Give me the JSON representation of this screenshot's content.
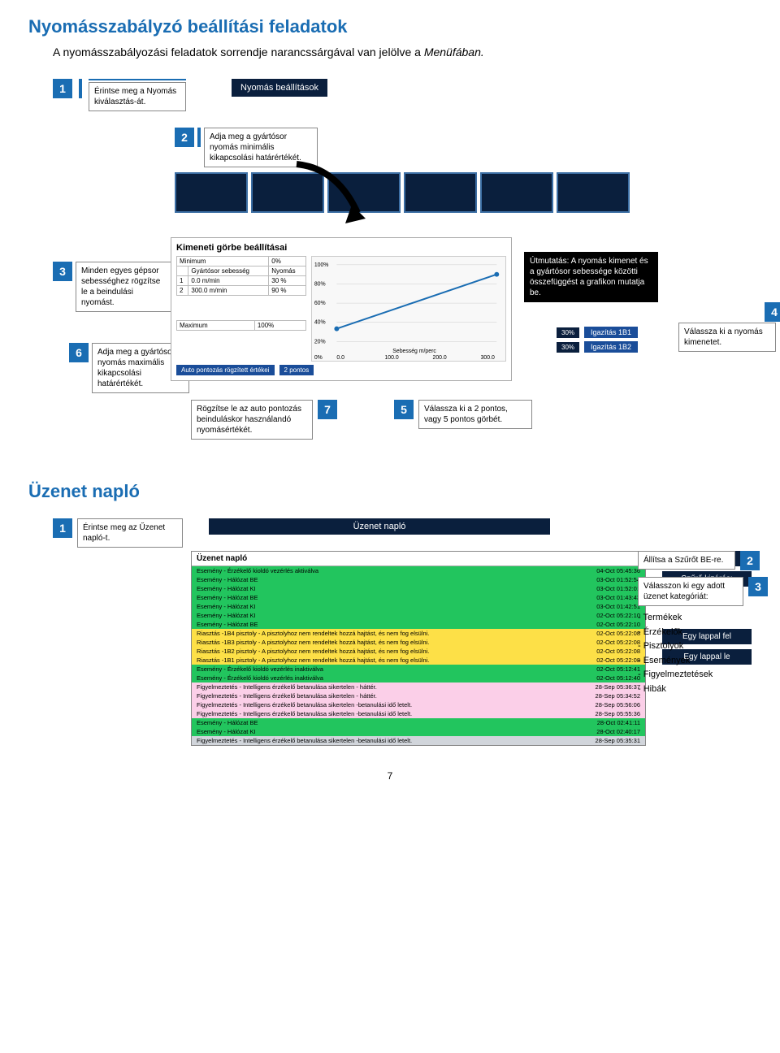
{
  "colors": {
    "accent": "#1a6db3",
    "navy": "#0a1f3d",
    "btn_blue": "#1a4d99",
    "row_green": "#22c55e",
    "row_yellow": "#fde047",
    "row_pink": "#fbcfe8",
    "row_gray": "#d1d5db"
  },
  "section1": {
    "title": "Nyomásszabályzó beállítási feladatok",
    "intro_a": "A nyomásszabályozási feladatok sorrendje narancssárgával van jelölve a ",
    "intro_b": "Menüfában.",
    "step1_num": "1",
    "step1_text": "Érintse meg a Nyomás kiválasztás-át.",
    "btn_nyomas": "Nyomás beállítások",
    "step2_num": "2",
    "step2_text": "Adja meg a gyártósor nyomás minimális kikapcsolási határértékét.",
    "panel_title": "Kimeneti görbe beállításai",
    "tbl_hdr_min": "Minimum",
    "tbl_hdr_minv": "0%",
    "tbl_col1": "Gyártósor sebesség",
    "tbl_col2": "Nyomás",
    "tbl_r1_n": "1",
    "tbl_r1_a": "0.0 m/min",
    "tbl_r1_b": "30 %",
    "tbl_r2_n": "2",
    "tbl_r2_a": "300.0 m/min",
    "tbl_r2_b": "90 %",
    "tbl_max": "Maximum",
    "tbl_maxv": "100%",
    "chart_y": [
      "100%",
      "80%",
      "60%",
      "40%",
      "20%",
      "0%"
    ],
    "chart_x_label": "Sebesség m/perc",
    "chart_x": [
      "0.0",
      "100.0",
      "200.0",
      "300.0"
    ],
    "btn_auto": "Auto pontozás rögzített értékei",
    "btn_2p": "2 pontos",
    "step3_num": "3",
    "step3_text": "Minden egyes gépsor sebességhez rögzítse le a beindulási nyomást.",
    "step6_num": "6",
    "step6_text": "Adja meg a gyártósor nyomás maximális kikapcsolási határértékét.",
    "hint_text": "Útmutatás: A nyomás kimenet és a gyártósor sebessége közötti összefüggést a grafikon mutatja be.",
    "step4_num": "4",
    "out_pct": "30%",
    "out1": "Igazítás 1B1",
    "out2": "Igazítás 1B2",
    "out_text": "Válassza ki a nyomás kimenetet.",
    "step7_num": "7",
    "step7_text": "Rögzítse le az auto pontozás beinduláskor használandó nyomásértékét.",
    "step5_num": "5",
    "step5_text": "Válassza ki a 2 pontos, vagy 5 pontos görbét."
  },
  "section2": {
    "title": "Üzenet napló",
    "step1_num": "1",
    "step1_text": "Érintse meg az Űzenet napló-t.",
    "panel_head": "Üzenet napló",
    "panel_title": "Üzenet napló",
    "rows": [
      {
        "cls": "lr-green",
        "t": "Esemény - Érzékelő kioldó vezérlés aktiválva",
        "d": "04-Oct 05:45:36"
      },
      {
        "cls": "lr-green",
        "t": "Esemény - Hálózat BE",
        "d": "03-Oct 01:52:54"
      },
      {
        "cls": "lr-green",
        "t": "Esemény - Hálózat KI",
        "d": "03-Oct 01:52:01"
      },
      {
        "cls": "lr-green",
        "t": "Esemény - Hálózat BE",
        "d": "03-Oct 01:43:43"
      },
      {
        "cls": "lr-green",
        "t": "Esemény - Hálózat KI",
        "d": "03-Oct 01:42:51"
      },
      {
        "cls": "lr-green",
        "t": "Esemény - Hálózat KI",
        "d": "02-Oct 05:22:10"
      },
      {
        "cls": "lr-green",
        "t": "Esemény - Hálózat BE",
        "d": "02-Oct 05:22:10"
      },
      {
        "cls": "lr-yellow",
        "t": "Riasztás -1B4 pisztoly - A pisztolyhoz nem rendeltek hozzá hajtást, és nem fog elsülni.",
        "d": "02-Oct 05:22:08"
      },
      {
        "cls": "lr-yellow",
        "t": "Riasztás -1B3 pisztoly - A pisztolyhoz nem rendeltek hozzá hajtást, és nem fog elsülni.",
        "d": "02-Oct 05:22:08"
      },
      {
        "cls": "lr-yellow",
        "t": "Riasztás -1B2 pisztoly - A pisztolyhoz nem rendeltek hozzá hajtást, és nem fog elsülni.",
        "d": "02-Oct 05:22:08"
      },
      {
        "cls": "lr-yellow",
        "t": "Riasztás -1B1 pisztoly - A pisztolyhoz nem rendeltek hozzá hajtást, és nem fog elsülni.",
        "d": "02-Oct 05:22:08"
      },
      {
        "cls": "lr-green",
        "t": "Esemény - Érzékelő kioldó vezérlés inaktiválva",
        "d": "02-Oct 05:12:41"
      },
      {
        "cls": "lr-green",
        "t": "Esemény - Érzékelő kioldó vezérlés inaktiválva",
        "d": "02-Oct 05:12:40"
      },
      {
        "cls": "lr-pink",
        "t": "Figyelmeztetés - Intelligens érzékelő betanulása sikertelen - háttér.",
        "d": "28-Sep 05:36:37"
      },
      {
        "cls": "lr-pink",
        "t": "Figyelmeztetés - Intelligens érzékelő betanulása sikertelen - háttér.",
        "d": "28-Sep 05:34:52"
      },
      {
        "cls": "lr-pink",
        "t": "Figyelmeztetés - Intelligens érzékelő betanulása sikertelen -betanulási idő letelt.",
        "d": "28-Sep 05:56:06"
      },
      {
        "cls": "lr-pink",
        "t": "Figyelmeztetés - Intelligens érzékelő betanulása sikertelen -betanulási idő letelt.",
        "d": "28-Sep 05:55:36"
      },
      {
        "cls": "lr-green",
        "t": "Esemény - Hálózat BE",
        "d": "28-Oct 02:41:11"
      },
      {
        "cls": "lr-green",
        "t": "Esemény - Hálózat KI",
        "d": "28-Oct 02:40:17"
      },
      {
        "cls": "lr-gray",
        "t": "Figyelmeztetés - Intelligens érzékelő betanulása sikertelen -betanulási idő letelt.",
        "d": "28-Sep 05:35:31"
      }
    ],
    "side_btns": [
      "Szűrő KI",
      "Szűrő kizárás:",
      "Egy lappal fel",
      "Egy lappal le"
    ],
    "step2_num": "2",
    "step2_text": "Állítsa a Szűrőt BE-re.",
    "step3_num": "3",
    "step3_text": "Válasszon ki egy adott üzenet kategóriát:",
    "cats": [
      "- Termékek",
      "- Érzékelők",
      "- Pisztolyok",
      "- Események",
      "- Figyelmeztetések",
      "- Hibák"
    ]
  },
  "page_num": "7"
}
